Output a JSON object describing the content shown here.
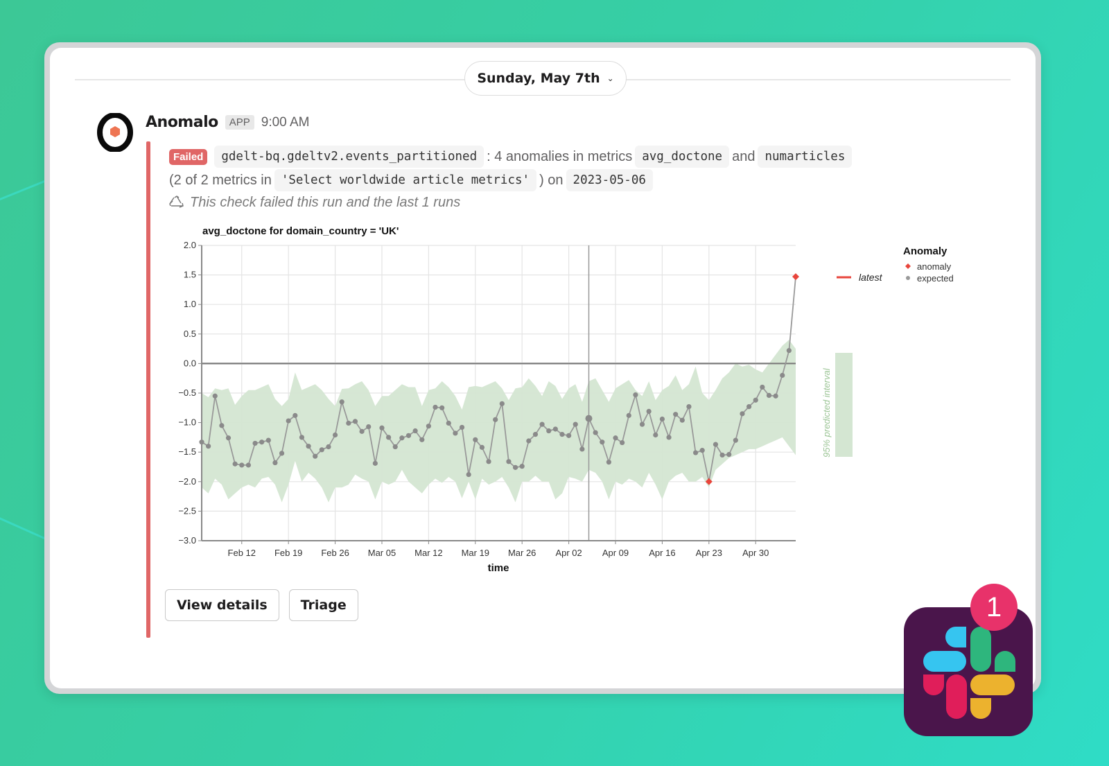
{
  "date_divider": {
    "label": "Sunday, May 7th",
    "chevron": "chevron-down-icon"
  },
  "message": {
    "sender": "Anomalo",
    "badge": "APP",
    "time": "9:00 AM",
    "status": "Failed",
    "table": "gdelt-bq.gdeltv2.events_partitioned",
    "summary_text": ": 4 anomalies in metrics",
    "metric1": "avg_doctone",
    "and_text": "and",
    "metric2": "numarticles",
    "line2_prefix": "(2 of 2 metrics in",
    "check_name": "'Select worldwide article metrics'",
    "line2_suffix": ") on",
    "run_date": "2023-05-06",
    "recurrence_icon": "recycle-icon",
    "recurrence_text": "This check failed this run and the last 1 runs"
  },
  "buttons": {
    "view_details": "View details",
    "triage": "Triage"
  },
  "slack_badge": {
    "count": "1"
  },
  "colors": {
    "failed": "#e06666",
    "band": "#d4e6d2",
    "line": "#8f8f8f",
    "anomaly": "#e8453c",
    "band_label": "#9cc596",
    "slack_bg": "#4a154b",
    "notif": "#e8326a"
  },
  "chart_data": {
    "type": "line",
    "title": "avg_doctone for domain_country = 'UK'",
    "xlabel": "time",
    "ylabel": "",
    "ylim": [
      -3.0,
      2.0
    ],
    "yticks": [
      "2.0",
      "1.5",
      "1.0",
      "0.5",
      "0.0",
      "-0.5",
      "-1.0",
      "-1.5",
      "-2.0",
      "-2.5",
      "-3.0"
    ],
    "xticks": [
      "Feb 12",
      "Feb 19",
      "Feb 26",
      "Mar 05",
      "Mar 12",
      "Mar 19",
      "Mar 26",
      "Apr 02",
      "Apr 09",
      "Apr 16",
      "Apr 23",
      "Apr 30"
    ],
    "x_start": "2023-02-06",
    "x_end": "2023-05-06",
    "grid": true,
    "vertical_marker": "2023-04-05",
    "legend": {
      "latest_label": "latest",
      "title": "Anomaly",
      "items": [
        "anomaly",
        "expected"
      ],
      "band_label": "95% predicted interval"
    },
    "series": [
      {
        "name": "avg_doctone",
        "values": [
          -1.33,
          -1.4,
          -0.55,
          -1.05,
          -1.26,
          -1.7,
          -1.72,
          -1.72,
          -1.35,
          -1.33,
          -1.3,
          -1.68,
          -1.52,
          -0.97,
          -0.88,
          -1.25,
          -1.4,
          -1.57,
          -1.46,
          -1.41,
          -1.21,
          -0.65,
          -1.01,
          -0.98,
          -1.15,
          -1.07,
          -1.69,
          -1.09,
          -1.25,
          -1.41,
          -1.26,
          -1.22,
          -1.14,
          -1.29,
          -1.06,
          -0.74,
          -0.75,
          -1.01,
          -1.18,
          -1.08,
          -1.88,
          -1.29,
          -1.42,
          -1.66,
          -0.95,
          -0.68,
          -1.66,
          -1.76,
          -1.74,
          -1.31,
          -1.2,
          -1.03,
          -1.14,
          -1.11,
          -1.2,
          -1.22,
          -1.03,
          -1.45,
          -0.93,
          -1.17,
          -1.33,
          -1.67,
          -1.26,
          -1.34,
          -0.88,
          -0.53,
          -1.03,
          -0.81,
          -1.21,
          -0.94,
          -1.25,
          -0.86,
          -0.96,
          -0.73,
          -1.51,
          -1.47,
          -2.0,
          -1.37,
          -1.55,
          -1.54,
          -1.3,
          -0.85,
          -0.73,
          -0.62,
          -0.4,
          -0.54,
          -0.55,
          -0.2,
          0.22,
          1.47
        ]
      }
    ],
    "band_upper": [
      -0.5,
      -0.57,
      -0.42,
      -0.45,
      -0.42,
      -0.7,
      -0.55,
      -0.45,
      -0.45,
      -0.4,
      -0.35,
      -0.6,
      -0.72,
      -0.6,
      -0.15,
      -0.45,
      -0.4,
      -0.35,
      -0.45,
      -0.6,
      -0.72,
      -0.43,
      -0.42,
      -0.35,
      -0.3,
      -0.45,
      -0.72,
      -0.55,
      -0.55,
      -0.45,
      -0.35,
      -0.4,
      -0.4,
      -0.72,
      -0.45,
      -0.42,
      -0.3,
      -0.4,
      -0.55,
      -0.78,
      -0.4,
      -0.38,
      -0.4,
      -0.35,
      -0.3,
      -0.42,
      -0.62,
      -0.42,
      -0.4,
      -0.25,
      -0.38,
      -0.55,
      -0.3,
      -0.38,
      -0.6,
      -0.42,
      -0.35,
      -0.65,
      -0.3,
      -0.25,
      -0.45,
      -0.65,
      -0.42,
      -0.35,
      -0.28,
      -0.45,
      -0.55,
      -0.3,
      -0.62,
      -0.45,
      -0.38,
      -0.2,
      -0.45,
      -0.35,
      -0.05,
      -0.5,
      -0.62,
      -0.45,
      -0.25,
      -0.15,
      0.0,
      -0.05,
      -0.02,
      -0.1,
      -0.15,
      0.0,
      0.15,
      0.3,
      0.4,
      0.25
    ],
    "band_lower": [
      -2.1,
      -2.2,
      -1.95,
      -2.05,
      -2.3,
      -2.2,
      -2.1,
      -2.05,
      -2.1,
      -1.95,
      -1.92,
      -2.05,
      -2.35,
      -2.05,
      -1.65,
      -2.0,
      -1.85,
      -1.95,
      -2.1,
      -2.35,
      -2.1,
      -2.1,
      -2.05,
      -1.88,
      -1.95,
      -2.0,
      -2.3,
      -2.0,
      -2.05,
      -2.0,
      -1.8,
      -2.0,
      -2.1,
      -2.2,
      -2.05,
      -1.95,
      -2.02,
      -1.92,
      -2.0,
      -2.28,
      -2.0,
      -2.3,
      -1.95,
      -2.05,
      -2.0,
      -1.92,
      -2.1,
      -2.35,
      -2.0,
      -2.0,
      -1.9,
      -2.0,
      -2.0,
      -2.3,
      -2.2,
      -1.92,
      -1.95,
      -2.0,
      -1.8,
      -1.85,
      -2.0,
      -2.3,
      -2.0,
      -2.05,
      -1.95,
      -2.0,
      -2.1,
      -1.85,
      -2.05,
      -2.3,
      -2.0,
      -1.9,
      -1.85,
      -2.0,
      -2.0,
      -1.92,
      -2.1,
      -1.8,
      -1.7,
      -1.6,
      -1.55,
      -1.5,
      -1.45,
      -1.45,
      -1.4,
      -1.35,
      -1.3,
      -1.25,
      -1.4,
      -1.55
    ],
    "anomalies": [
      {
        "date": "2023-04-23",
        "value": -2.0
      },
      {
        "date": "2023-05-06",
        "value": 1.47
      }
    ]
  }
}
